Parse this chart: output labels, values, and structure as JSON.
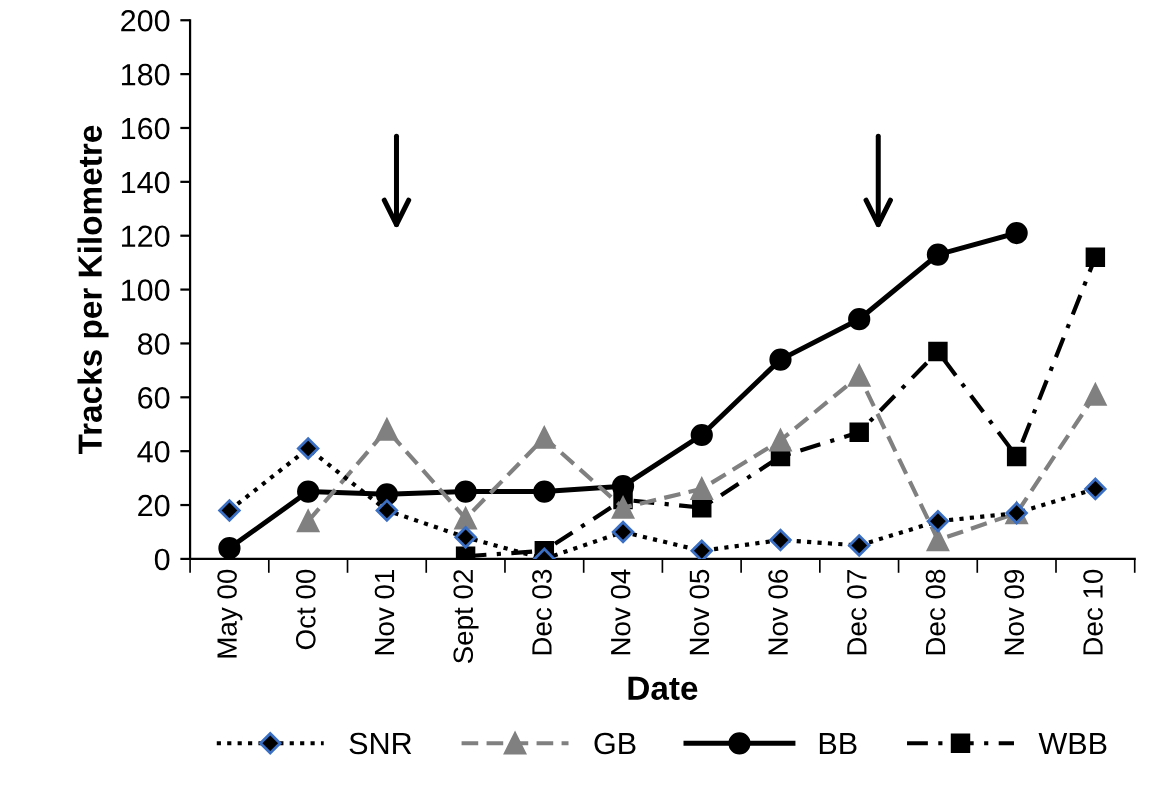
{
  "chart_data": {
    "type": "line",
    "xlabel": "Date",
    "ylabel": "Tracks per Kilometre",
    "categories": [
      "May 00",
      "Oct 00",
      "Nov 01",
      "Sept 02",
      "Dec 03",
      "Nov 04",
      "Nov 05",
      "Nov 06",
      "Dec 07",
      "Dec 08",
      "Nov 09",
      "Dec 10"
    ],
    "series": [
      {
        "name": "SNR",
        "color": "#000000",
        "marker": "diamond",
        "line_style": "dotted",
        "values": [
          18,
          41,
          18,
          8,
          0,
          10,
          3,
          7,
          5,
          14,
          17,
          26
        ]
      },
      {
        "name": "GB",
        "color": "#808080",
        "marker": "triangle",
        "line_style": "dashed",
        "values": [
          null,
          14,
          48,
          15,
          45,
          19,
          26,
          44,
          68,
          7,
          17,
          61
        ]
      },
      {
        "name": "BB",
        "color": "#000000",
        "marker": "circle",
        "line_style": "solid",
        "values": [
          4,
          25,
          24,
          25,
          25,
          27,
          46,
          74,
          89,
          113,
          121,
          null
        ]
      },
      {
        "name": "WBB",
        "color": "#000000",
        "marker": "square",
        "line_style": "dashdot",
        "values": [
          null,
          null,
          null,
          1,
          3,
          22,
          19,
          38,
          47,
          77,
          38,
          112
        ]
      }
    ],
    "ylim": [
      0,
      200
    ],
    "yticks": [
      0,
      20,
      40,
      60,
      80,
      100,
      120,
      140,
      160,
      180,
      200
    ],
    "grid": false,
    "legend": "bottom"
  }
}
